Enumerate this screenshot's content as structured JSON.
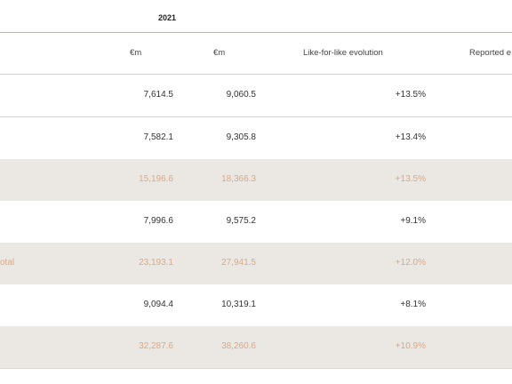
{
  "header": {
    "year": "2021",
    "col1": "€m",
    "col2": "€m",
    "col3": "Like-for-like evolution",
    "col4": "Reported e"
  },
  "rows": [
    {
      "label": "",
      "v1": "7,614.5",
      "v2": "9,060.5",
      "v3": "+13.5%",
      "shaded": false
    },
    {
      "label": "",
      "v1": "7,582.1",
      "v2": "9,305.8",
      "v3": "+13.4%",
      "shaded": false
    },
    {
      "label": "",
      "v1": "15,196.6",
      "v2": "18,366.3",
      "v3": "+13.5%",
      "shaded": true
    },
    {
      "label": "",
      "v1": "7,996.6",
      "v2": "9,575.2",
      "v3": "+9.1%",
      "shaded": false
    },
    {
      "label": "otal",
      "v1": "23,193.1",
      "v2": "27,941.5",
      "v3": "+12.0%",
      "shaded": true
    },
    {
      "label": "",
      "v1": "9,094.4",
      "v2": "10,319.1",
      "v3": "+8.1%",
      "shaded": false
    },
    {
      "label": "",
      "v1": "32,287.6",
      "v2": "38,260.6",
      "v3": "+10.9%",
      "shaded": true
    }
  ],
  "colors": {
    "shade": "#ebe7e3",
    "shade_text": "#d9a987",
    "rule": "#d9d6d2"
  }
}
